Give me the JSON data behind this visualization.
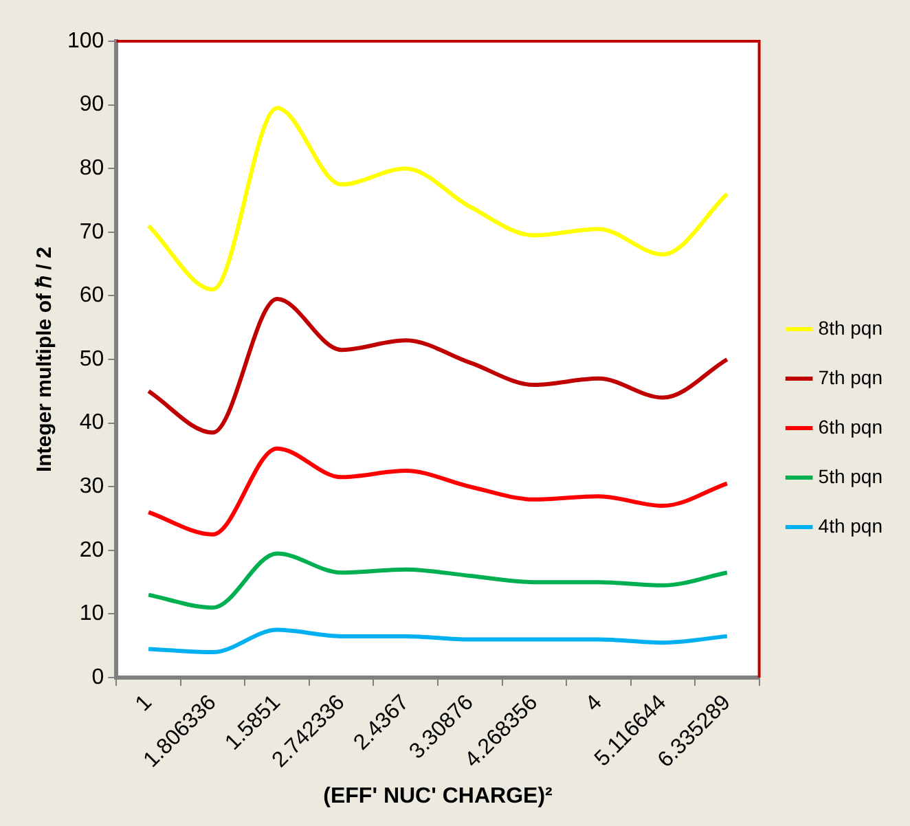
{
  "chart_data": {
    "type": "line",
    "xlabel": "(EFF' NUC' CHARGE)²",
    "ylabel": "Integer multiple of ℏ / 2",
    "categories": [
      "1",
      "1.806336",
      "1.5851",
      "2.742336",
      "2.4367",
      "3.30876",
      "4.268356",
      "4",
      "5.116644",
      "6.335289"
    ],
    "series": [
      {
        "name": "8th pqn",
        "color": "#ffff00",
        "values": [
          71,
          61,
          89.5,
          77.5,
          80,
          74,
          69.5,
          70.5,
          66.5,
          76
        ]
      },
      {
        "name": "7th pqn",
        "color": "#c00000",
        "values": [
          45,
          38.5,
          59.5,
          51.5,
          53,
          49.5,
          46,
          47,
          44,
          50
        ]
      },
      {
        "name": "6th pqn",
        "color": "#ff0000",
        "values": [
          26,
          22.5,
          36,
          31.5,
          32.5,
          30,
          28,
          28.5,
          27,
          30.5
        ]
      },
      {
        "name": "5th pqn",
        "color": "#00b050",
        "values": [
          13,
          11,
          19.5,
          16.5,
          17,
          16,
          15,
          15,
          14.5,
          16.5
        ]
      },
      {
        "name": "4th pqn",
        "color": "#00b0f0",
        "values": [
          4.5,
          4,
          7.5,
          6.5,
          6.5,
          6,
          6,
          6,
          5.5,
          6.5
        ]
      }
    ],
    "ylim": [
      0,
      100
    ],
    "yticks": [
      0,
      10,
      20,
      30,
      40,
      50,
      60,
      70,
      80,
      90,
      100
    ],
    "grid": false,
    "legend": "right",
    "marker": "none",
    "line_style": "solid"
  }
}
